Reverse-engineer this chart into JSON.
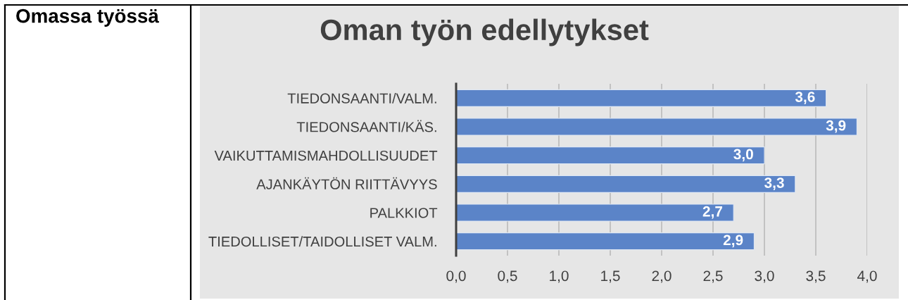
{
  "chart_data": {
    "type": "bar",
    "orientation": "horizontal",
    "title": "Oman työn edellytykset",
    "categories": [
      "TIEDONSAANTI/VALM.",
      "TIEDONSAANTI/KÄS.",
      "VAIKUTTAMISMAHDOLLISUUDET",
      "AJANKÄYTÖN RIITTÄVYYS",
      "PALKKIOT",
      "TIEDOLLISET/TAIDOLLISET VALM."
    ],
    "values": [
      3.6,
      3.9,
      3.0,
      3.3,
      2.7,
      2.9
    ],
    "value_labels": [
      "3,6",
      "3,9",
      "3,0",
      "3,3",
      "2,7",
      "2,9"
    ],
    "color": "#5b84c8",
    "xlim": [
      0,
      4
    ],
    "xticks": [
      {
        "value": 0,
        "label": "0,0"
      },
      {
        "value": 0.5,
        "label": "0,5"
      },
      {
        "value": 1,
        "label": "1,0"
      },
      {
        "value": 1.5,
        "label": "1,5"
      },
      {
        "value": 2,
        "label": "2,0"
      },
      {
        "value": 2.5,
        "label": "2,5"
      },
      {
        "value": 3,
        "label": "3,0"
      },
      {
        "value": 3.5,
        "label": "3,5"
      },
      {
        "value": 4,
        "label": "4,0"
      }
    ],
    "grid": "x",
    "annotations": [
      "Omassa työssä"
    ]
  }
}
